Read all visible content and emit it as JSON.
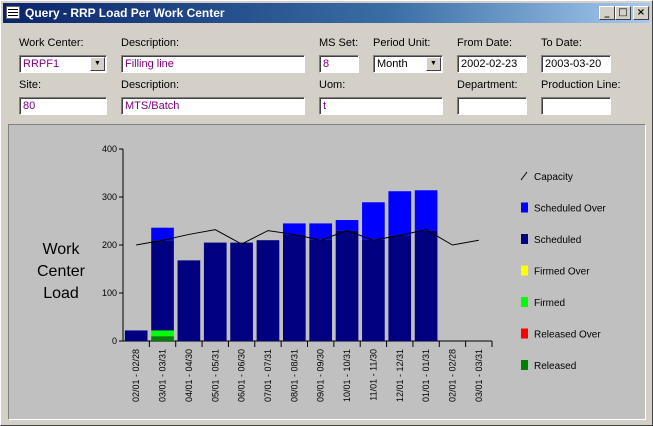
{
  "window": {
    "title": "Query - RRP Load Per Work Center"
  },
  "form": {
    "work_center_label": "Work Center:",
    "work_center_value": "RRPF1",
    "description1_label": "Description:",
    "description1_value": "Filling line",
    "ms_set_label": "MS Set:",
    "ms_set_value": "8",
    "period_unit_label": "Period Unit:",
    "period_unit_value": "Month",
    "from_date_label": "From Date:",
    "from_date_value": "2002-02-23",
    "to_date_label": "To Date:",
    "to_date_value": "2003-03-20",
    "site_label": "Site:",
    "site_value": "80",
    "description2_label": "Description:",
    "description2_value": "MTS/Batch",
    "uom_label": "Uom:",
    "uom_value": "t",
    "department_label": "Department:",
    "department_value": "",
    "production_line_label": "Production Line:",
    "production_line_value": ""
  },
  "chart_data": {
    "type": "bar",
    "ylabel": "Work Center Load",
    "ylim": [
      0,
      400
    ],
    "yticks": [
      0,
      100,
      200,
      300,
      400
    ],
    "categories": [
      "02/01 - 02/28",
      "03/01 - 03/31",
      "04/01 - 04/30",
      "05/01 - 05/31",
      "06/01 - 06/30",
      "07/01 - 07/31",
      "08/01 - 08/31",
      "09/01 - 09/30",
      "10/01 - 10/31",
      "11/01 - 11/30",
      "12/01 - 12/31",
      "01/01 - 01/31",
      "02/01 - 02/28",
      "03/01 - 03/31"
    ],
    "series": [
      {
        "name": "Released",
        "color": "#008000",
        "values": [
          0,
          10,
          0,
          0,
          0,
          0,
          0,
          0,
          0,
          0,
          0,
          0,
          0,
          0
        ]
      },
      {
        "name": "Released Over",
        "color": "#ff0000",
        "values": [
          0,
          0,
          0,
          0,
          0,
          0,
          0,
          0,
          0,
          0,
          0,
          0,
          0,
          0
        ]
      },
      {
        "name": "Firmed",
        "color": "#00ff00",
        "values": [
          0,
          12,
          0,
          0,
          0,
          0,
          0,
          0,
          0,
          0,
          0,
          0,
          0,
          0
        ]
      },
      {
        "name": "Firmed Over",
        "color": "#ffff00",
        "values": [
          0,
          0,
          0,
          0,
          0,
          0,
          0,
          0,
          0,
          0,
          0,
          0,
          0,
          0
        ]
      },
      {
        "name": "Scheduled",
        "color": "#000080",
        "values": [
          22,
          188,
          168,
          205,
          205,
          210,
          222,
          212,
          230,
          212,
          220,
          230,
          0,
          0
        ]
      },
      {
        "name": "Scheduled Over",
        "color": "#0000ff",
        "values": [
          0,
          26,
          0,
          0,
          0,
          0,
          23,
          33,
          22,
          77,
          92,
          84,
          0,
          0
        ]
      },
      {
        "name": "Capacity",
        "color": "#000000",
        "type": "line",
        "values": [
          200,
          210,
          222,
          232,
          202,
          230,
          222,
          210,
          230,
          210,
          220,
          232,
          200,
          210
        ]
      }
    ],
    "legend": [
      "Capacity",
      "Scheduled Over",
      "Scheduled",
      "Firmed Over",
      "Firmed",
      "Released Over",
      "Released"
    ],
    "legend_position": "right"
  }
}
